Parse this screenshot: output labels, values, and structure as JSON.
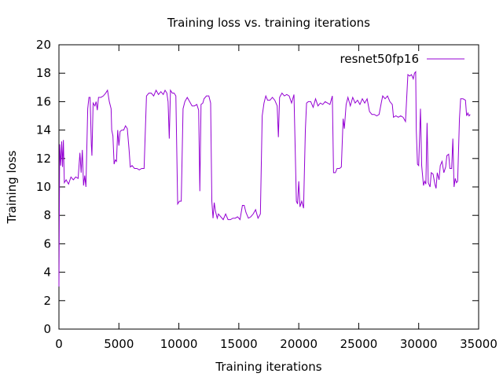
{
  "chart_data": {
    "type": "line",
    "title": "Training loss vs. training iterations",
    "xlabel": "Training iterations",
    "ylabel": "Training loss",
    "xlim": [
      0,
      35000
    ],
    "ylim": [
      0,
      20
    ],
    "xticks": [
      0,
      5000,
      10000,
      15000,
      20000,
      25000,
      30000,
      35000
    ],
    "yticks": [
      0,
      2,
      4,
      6,
      8,
      10,
      12,
      14,
      16,
      18,
      20
    ],
    "grid": false,
    "legend_position": "top-right",
    "series": [
      {
        "name": "resnet50fp16",
        "color": "#9400d3",
        "points": [
          [
            0,
            3.0
          ],
          [
            60,
            13.0
          ],
          [
            150,
            11.5
          ],
          [
            230,
            13.2
          ],
          [
            300,
            11.4
          ],
          [
            370,
            13.3
          ],
          [
            450,
            10.3
          ],
          [
            600,
            10.5
          ],
          [
            800,
            10.2
          ],
          [
            1000,
            10.7
          ],
          [
            1200,
            10.5
          ],
          [
            1400,
            10.7
          ],
          [
            1600,
            10.6
          ],
          [
            1750,
            12.4
          ],
          [
            1850,
            11.0
          ],
          [
            1950,
            12.6
          ],
          [
            2050,
            10.1
          ],
          [
            2150,
            10.8
          ],
          [
            2250,
            10.0
          ],
          [
            2400,
            15.5
          ],
          [
            2500,
            16.3
          ],
          [
            2600,
            16.3
          ],
          [
            2700,
            13.0
          ],
          [
            2750,
            12.2
          ],
          [
            2850,
            15.9
          ],
          [
            3000,
            15.7
          ],
          [
            3100,
            16.0
          ],
          [
            3200,
            15.4
          ],
          [
            3300,
            16.3
          ],
          [
            3500,
            16.3
          ],
          [
            3700,
            16.4
          ],
          [
            3900,
            16.6
          ],
          [
            4050,
            16.8
          ],
          [
            4200,
            16.0
          ],
          [
            4350,
            15.5
          ],
          [
            4400,
            14.0
          ],
          [
            4500,
            13.6
          ],
          [
            4600,
            11.6
          ],
          [
            4700,
            11.9
          ],
          [
            4800,
            11.8
          ],
          [
            4900,
            14.0
          ],
          [
            5000,
            12.9
          ],
          [
            5100,
            13.9
          ],
          [
            5250,
            14.0
          ],
          [
            5400,
            14.0
          ],
          [
            5550,
            14.3
          ],
          [
            5700,
            14.1
          ],
          [
            5850,
            12.6
          ],
          [
            5950,
            11.4
          ],
          [
            6100,
            11.5
          ],
          [
            6300,
            11.3
          ],
          [
            6500,
            11.3
          ],
          [
            6700,
            11.2
          ],
          [
            6900,
            11.3
          ],
          [
            7100,
            11.3
          ],
          [
            7300,
            16.4
          ],
          [
            7500,
            16.6
          ],
          [
            7700,
            16.6
          ],
          [
            7900,
            16.4
          ],
          [
            8100,
            16.8
          ],
          [
            8300,
            16.5
          ],
          [
            8500,
            16.7
          ],
          [
            8700,
            16.5
          ],
          [
            8850,
            16.8
          ],
          [
            9000,
            16.6
          ],
          [
            9100,
            16.0
          ],
          [
            9200,
            13.4
          ],
          [
            9300,
            16.8
          ],
          [
            9450,
            16.6
          ],
          [
            9600,
            16.6
          ],
          [
            9750,
            16.4
          ],
          [
            9900,
            8.8
          ],
          [
            10050,
            9.0
          ],
          [
            10200,
            9.0
          ],
          [
            10350,
            15.5
          ],
          [
            10500,
            16.0
          ],
          [
            10700,
            16.3
          ],
          [
            10900,
            16.0
          ],
          [
            11100,
            15.7
          ],
          [
            11300,
            15.7
          ],
          [
            11500,
            15.8
          ],
          [
            11650,
            15.4
          ],
          [
            11750,
            9.7
          ],
          [
            11850,
            15.8
          ],
          [
            12000,
            15.9
          ],
          [
            12100,
            16.2
          ],
          [
            12300,
            16.4
          ],
          [
            12500,
            16.4
          ],
          [
            12650,
            15.9
          ],
          [
            12750,
            9.0
          ],
          [
            12850,
            7.8
          ],
          [
            12950,
            8.9
          ],
          [
            13050,
            8.3
          ],
          [
            13200,
            7.8
          ],
          [
            13300,
            8.1
          ],
          [
            13500,
            7.9
          ],
          [
            13700,
            7.7
          ],
          [
            13900,
            8.1
          ],
          [
            14100,
            7.7
          ],
          [
            14300,
            7.7
          ],
          [
            14500,
            7.8
          ],
          [
            14700,
            7.8
          ],
          [
            14900,
            7.9
          ],
          [
            15100,
            7.7
          ],
          [
            15300,
            8.7
          ],
          [
            15450,
            8.7
          ],
          [
            15600,
            8.2
          ],
          [
            15800,
            7.8
          ],
          [
            16000,
            7.9
          ],
          [
            16200,
            8.1
          ],
          [
            16400,
            8.4
          ],
          [
            16600,
            7.8
          ],
          [
            16800,
            8.1
          ],
          [
            16950,
            15.0
          ],
          [
            17100,
            15.9
          ],
          [
            17250,
            16.4
          ],
          [
            17400,
            16.1
          ],
          [
            17600,
            16.1
          ],
          [
            17800,
            16.3
          ],
          [
            18000,
            16.1
          ],
          [
            18200,
            15.7
          ],
          [
            18300,
            13.5
          ],
          [
            18400,
            16.3
          ],
          [
            18600,
            16.6
          ],
          [
            18800,
            16.4
          ],
          [
            19000,
            16.5
          ],
          [
            19200,
            16.4
          ],
          [
            19400,
            15.9
          ],
          [
            19600,
            16.5
          ],
          [
            19800,
            9.0
          ],
          [
            19900,
            8.8
          ],
          [
            20000,
            10.4
          ],
          [
            20100,
            8.6
          ],
          [
            20250,
            9.0
          ],
          [
            20400,
            8.5
          ],
          [
            20550,
            14.0
          ],
          [
            20650,
            15.9
          ],
          [
            20800,
            16.0
          ],
          [
            21000,
            16.0
          ],
          [
            21200,
            15.6
          ],
          [
            21400,
            16.2
          ],
          [
            21600,
            15.7
          ],
          [
            21800,
            15.9
          ],
          [
            22000,
            15.8
          ],
          [
            22200,
            16.0
          ],
          [
            22400,
            15.9
          ],
          [
            22600,
            15.8
          ],
          [
            22800,
            16.4
          ],
          [
            22900,
            11.0
          ],
          [
            23050,
            11.0
          ],
          [
            23200,
            11.3
          ],
          [
            23400,
            11.3
          ],
          [
            23550,
            11.4
          ],
          [
            23700,
            14.8
          ],
          [
            23800,
            14.1
          ],
          [
            23950,
            15.8
          ],
          [
            24100,
            16.3
          ],
          [
            24300,
            15.7
          ],
          [
            24500,
            16.3
          ],
          [
            24700,
            15.9
          ],
          [
            24900,
            16.1
          ],
          [
            25100,
            15.8
          ],
          [
            25300,
            16.2
          ],
          [
            25500,
            15.9
          ],
          [
            25700,
            16.2
          ],
          [
            25900,
            15.3
          ],
          [
            26100,
            15.1
          ],
          [
            26300,
            15.1
          ],
          [
            26500,
            15.0
          ],
          [
            26700,
            15.1
          ],
          [
            26900,
            16.0
          ],
          [
            27000,
            16.4
          ],
          [
            27200,
            16.2
          ],
          [
            27400,
            16.4
          ],
          [
            27600,
            16.0
          ],
          [
            27800,
            15.8
          ],
          [
            27900,
            14.9
          ],
          [
            28100,
            15.0
          ],
          [
            28300,
            14.9
          ],
          [
            28500,
            15.0
          ],
          [
            28700,
            14.9
          ],
          [
            28900,
            14.6
          ],
          [
            29100,
            17.9
          ],
          [
            29250,
            17.8
          ],
          [
            29400,
            17.9
          ],
          [
            29550,
            17.6
          ],
          [
            29650,
            18.0
          ],
          [
            29750,
            18.1
          ],
          [
            29800,
            14.0
          ],
          [
            29900,
            11.6
          ],
          [
            30000,
            11.5
          ],
          [
            30150,
            15.5
          ],
          [
            30250,
            11.5
          ],
          [
            30400,
            10.1
          ],
          [
            30500,
            10.4
          ],
          [
            30600,
            10.2
          ],
          [
            30700,
            14.5
          ],
          [
            30800,
            10.3
          ],
          [
            30950,
            10.0
          ],
          [
            31050,
            11.0
          ],
          [
            31200,
            10.9
          ],
          [
            31350,
            10.2
          ],
          [
            31450,
            9.9
          ],
          [
            31550,
            11.0
          ],
          [
            31700,
            10.5
          ],
          [
            31800,
            11.5
          ],
          [
            31950,
            11.8
          ],
          [
            32100,
            11.0
          ],
          [
            32250,
            11.4
          ],
          [
            32350,
            12.2
          ],
          [
            32500,
            12.3
          ],
          [
            32600,
            11.3
          ],
          [
            32750,
            11.3
          ],
          [
            32850,
            13.4
          ],
          [
            32950,
            10.0
          ],
          [
            33050,
            10.6
          ],
          [
            33150,
            10.3
          ],
          [
            33250,
            10.4
          ],
          [
            33400,
            14.8
          ],
          [
            33500,
            16.2
          ],
          [
            33700,
            16.2
          ],
          [
            33900,
            16.1
          ],
          [
            34000,
            15.0
          ],
          [
            34100,
            15.2
          ],
          [
            34200,
            15.0
          ],
          [
            34300,
            15.1
          ]
        ]
      }
    ]
  }
}
